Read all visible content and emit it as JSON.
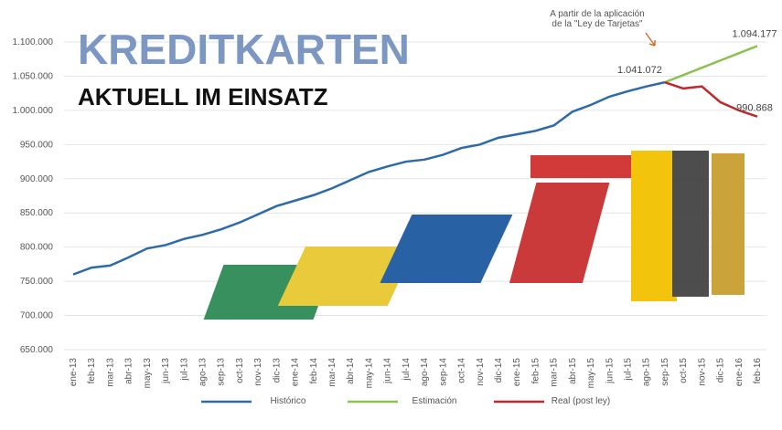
{
  "chart_data": {
    "type": "line",
    "title": "KREDITKARTEN",
    "subtitle": "AKTUELL IM EINSATZ",
    "annotation": "A partir de la aplicación de la \"Ley de Tarjetas\"",
    "categories": [
      "ene-13",
      "feb-13",
      "mar-13",
      "abr-13",
      "may-13",
      "jun-13",
      "jul-13",
      "ago-13",
      "sep-13",
      "oct-13",
      "nov-13",
      "dic-13",
      "ene-14",
      "feb-14",
      "mar-14",
      "abr-14",
      "may-14",
      "jun-14",
      "jul-14",
      "ago-14",
      "sep-14",
      "oct-14",
      "nov-14",
      "dic-14",
      "ene-15",
      "feb-15",
      "mar-15",
      "abr-15",
      "may-15",
      "jun-15",
      "jul-15",
      "ago-15",
      "sep-15",
      "oct-15",
      "nov-15",
      "dic-15",
      "ene-16",
      "feb-16"
    ],
    "series": [
      {
        "name": "Histórico",
        "color": "#2e6aa8",
        "values": [
          760000,
          770000,
          773000,
          785000,
          798000,
          803000,
          812000,
          818000,
          826000,
          836000,
          848000,
          860000,
          868000,
          876000,
          886000,
          898000,
          910000,
          918000,
          925000,
          928000,
          935000,
          945000,
          950000,
          960000,
          965000,
          970000,
          978000,
          998000,
          1008000,
          1020000,
          1028000,
          1035000,
          1041072,
          null,
          null,
          null,
          null,
          null
        ],
        "value_labels": [
          null,
          null,
          null,
          null,
          null,
          null,
          null,
          null,
          null,
          null,
          null,
          null,
          null,
          null,
          null,
          null,
          null,
          null,
          null,
          null,
          null,
          null,
          null,
          null,
          null,
          null,
          null,
          null,
          null,
          null,
          null,
          null,
          "1.041.072",
          null,
          null,
          null,
          null,
          null
        ]
      },
      {
        "name": "Estimación",
        "color": "#8cc152",
        "values": [
          null,
          null,
          null,
          null,
          null,
          null,
          null,
          null,
          null,
          null,
          null,
          null,
          null,
          null,
          null,
          null,
          null,
          null,
          null,
          null,
          null,
          null,
          null,
          null,
          null,
          null,
          null,
          null,
          null,
          null,
          null,
          null,
          1041072,
          1051693,
          1062314,
          1072935,
          1083556,
          1094177
        ],
        "value_labels": [
          null,
          null,
          null,
          null,
          null,
          null,
          null,
          null,
          null,
          null,
          null,
          null,
          null,
          null,
          null,
          null,
          null,
          null,
          null,
          null,
          null,
          null,
          null,
          null,
          null,
          null,
          null,
          null,
          null,
          null,
          null,
          null,
          null,
          null,
          null,
          null,
          null,
          "1.094.177"
        ]
      },
      {
        "name": "Real (post ley)",
        "color": "#c0282d",
        "values": [
          null,
          null,
          null,
          null,
          null,
          null,
          null,
          null,
          null,
          null,
          null,
          null,
          null,
          null,
          null,
          null,
          null,
          null,
          null,
          null,
          null,
          null,
          null,
          null,
          null,
          null,
          null,
          null,
          null,
          null,
          null,
          null,
          1041072,
          1032000,
          1035000,
          1012000,
          1000000,
          990868
        ],
        "value_labels": [
          null,
          null,
          null,
          null,
          null,
          null,
          null,
          null,
          null,
          null,
          null,
          null,
          null,
          null,
          null,
          null,
          null,
          null,
          null,
          null,
          null,
          null,
          null,
          null,
          null,
          null,
          null,
          null,
          null,
          null,
          null,
          null,
          null,
          null,
          null,
          null,
          null,
          "990.868"
        ]
      }
    ],
    "ylim": [
      650000,
      1100000
    ],
    "yticks": [
      {
        "value": 650000,
        "label": "650.000"
      },
      {
        "value": 700000,
        "label": "700.000"
      },
      {
        "value": 750000,
        "label": "750.000"
      },
      {
        "value": 800000,
        "label": "800.000"
      },
      {
        "value": 850000,
        "label": "850.000"
      },
      {
        "value": 900000,
        "label": "900.000"
      },
      {
        "value": 950000,
        "label": "950.000"
      },
      {
        "value": 1000000,
        "label": "1.000.000"
      },
      {
        "value": 1050000,
        "label": "1.050.000"
      },
      {
        "value": 1100000,
        "label": "1.100.000"
      }
    ],
    "grid": true
  }
}
